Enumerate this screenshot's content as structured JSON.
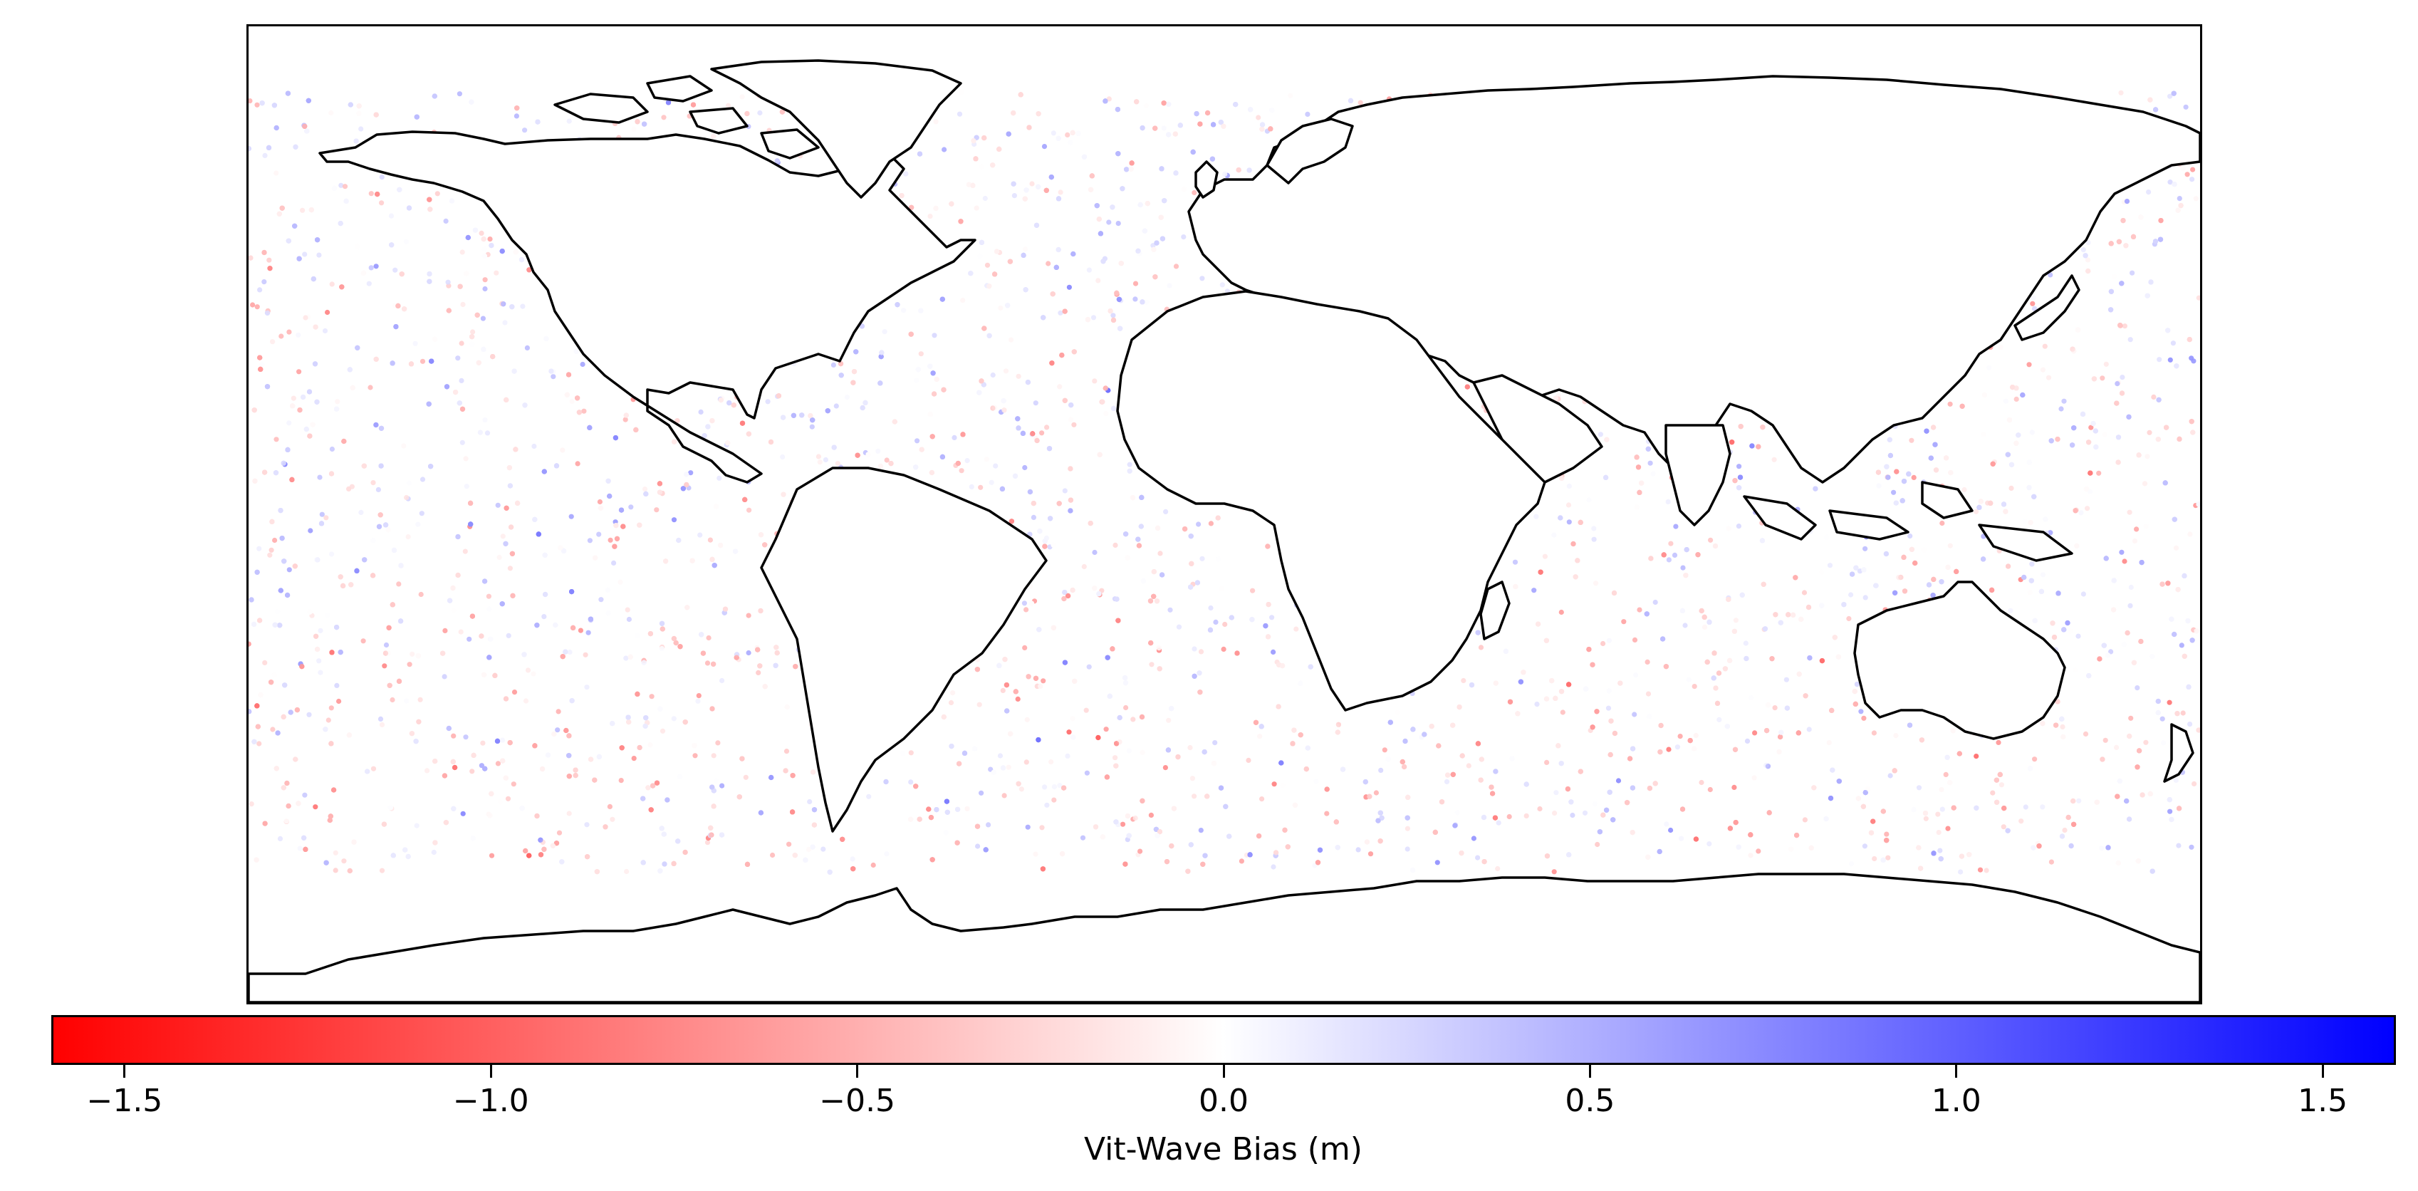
{
  "colorbar": {
    "label": "Vit-Wave Bias (m)",
    "vmin": -1.6,
    "vmax": 1.6,
    "ticks": [
      {
        "value": -1.5,
        "label": "−1.5"
      },
      {
        "value": -1.0,
        "label": "−1.0"
      },
      {
        "value": -0.5,
        "label": "−0.5"
      },
      {
        "value": 0.0,
        "label": "0.0"
      },
      {
        "value": 0.5,
        "label": "0.5"
      },
      {
        "value": 1.0,
        "label": "1.0"
      },
      {
        "value": 1.5,
        "label": "1.5"
      }
    ],
    "colors": {
      "low": "#ff0000",
      "mid": "#ffffff",
      "high": "#0000ff"
    }
  },
  "map": {
    "projection": "PlateCarree",
    "extent_lon": [
      -180,
      180
    ],
    "extent_lat": [
      -90,
      90
    ],
    "data_lat_range": [
      -66,
      78
    ],
    "coastline_color": "#000000",
    "marker": "scatter dots"
  }
}
